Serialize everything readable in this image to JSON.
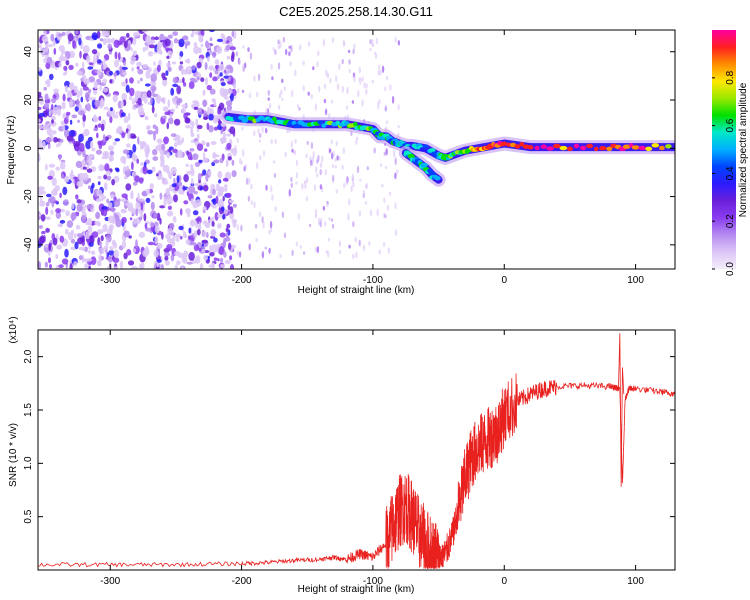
{
  "title": "C2E5.2025.258.14.30.G11",
  "chart_data": [
    {
      "type": "heatmap",
      "name": "spectrogram",
      "xlabel": "Height of straight line (km)",
      "ylabel": "Frequency (Hz)",
      "xlim": [
        -355,
        130
      ],
      "ylim": [
        -50,
        49
      ],
      "xticks": [
        -300,
        -200,
        -100,
        0,
        100
      ],
      "yticks": [
        -40,
        -20,
        0,
        20,
        40
      ],
      "xtick_labels": [
        "-300",
        "-200",
        "-100",
        "0",
        "100"
      ],
      "ytick_labels": [
        "-40",
        "-20",
        "0",
        "20",
        "40"
      ],
      "colorbar": {
        "label": "Normalized spectral amplitude",
        "range": [
          0,
          1
        ],
        "ticks": [
          0.0,
          0.2,
          0.4,
          0.6,
          0.8
        ],
        "tick_labels": [
          "0.0",
          "0.2",
          "0.4",
          "0.6",
          "0.8"
        ],
        "colormap": [
          "#f4eefa",
          "#dcc6f7",
          "#b58cf1",
          "#8a3cf0",
          "#6a1fd9",
          "#2b1cff",
          "#0044ff",
          "#00b0ff",
          "#00e8c8",
          "#00e000",
          "#9be800",
          "#ffe800",
          "#ff8c00",
          "#ff2020",
          "#ff00a0"
        ]
      },
      "ridge": {
        "x": [
          -210,
          -195,
          -180,
          -170,
          -160,
          -145,
          -130,
          -120,
          -110,
          -100,
          -95,
          -90,
          -85,
          -80,
          -75,
          -70,
          -60,
          -50,
          -45,
          -40,
          -30,
          -20,
          -10,
          0,
          20,
          50,
          80,
          100,
          130
        ],
        "y": [
          13,
          12,
          12,
          11,
          10,
          10,
          10,
          10,
          9,
          8,
          5,
          5,
          3,
          2,
          1,
          1,
          0,
          -3,
          -4,
          -3,
          -1,
          0,
          1,
          2,
          0.5,
          0.5,
          0.5,
          0.5,
          0.5
        ],
        "amplitude": [
          0.55,
          0.6,
          0.55,
          0.6,
          0.5,
          0.55,
          0.6,
          0.6,
          0.65,
          0.6,
          0.55,
          0.6,
          0.55,
          0.5,
          0.55,
          0.5,
          0.45,
          0.5,
          0.55,
          0.6,
          0.7,
          0.8,
          0.9,
          0.95,
          0.95,
          0.9,
          0.95,
          0.9,
          0.85
        ]
      },
      "branch": {
        "x": [
          -75,
          -70,
          -65,
          -60,
          -55,
          -50
        ],
        "y": [
          -2,
          -4,
          -6,
          -8,
          -11,
          -13
        ],
        "amplitude": [
          0.5,
          0.55,
          0.5,
          0.55,
          0.5,
          0.45
        ]
      },
      "noise_region": {
        "x_range": [
          -355,
          -205
        ],
        "y_range": [
          -50,
          49
        ]
      },
      "gap_region": {
        "x_range": [
          -160,
          -105
        ]
      }
    },
    {
      "type": "line",
      "name": "snr",
      "xlabel": "Height of straight line (km)",
      "ylabel": "SNR (10 * v/v)",
      "y_multiplier": "(x10⁴)",
      "xlim": [
        -355,
        130
      ],
      "ylim": [
        0,
        2.25
      ],
      "xticks": [
        -300,
        -200,
        -100,
        0,
        100
      ],
      "yticks": [
        0.5,
        1.0,
        1.5,
        2.0
      ],
      "xtick_labels": [
        "-300",
        "-200",
        "-100",
        "0",
        "100"
      ],
      "ytick_labels": [
        "0.5",
        "1.0",
        "1.5",
        "2.0"
      ],
      "color": "#e8201e",
      "series": [
        {
          "x": [
            -355,
            -300,
            -250,
            -200,
            -180,
            -160,
            -140,
            -130,
            -120,
            -110,
            -100,
            -90,
            -85,
            -80,
            -75,
            -70,
            -65,
            -60,
            -55,
            -50,
            -45,
            -40,
            -35,
            -30,
            -25,
            -20,
            -15,
            -10,
            -5,
            0,
            10,
            20,
            30,
            40,
            60,
            80,
            88,
            90,
            92,
            95,
            100,
            120,
            130
          ],
          "y": [
            0.05,
            0.05,
            0.05,
            0.06,
            0.07,
            0.09,
            0.1,
            0.12,
            0.1,
            0.15,
            0.12,
            0.25,
            0.4,
            0.55,
            0.6,
            0.5,
            0.35,
            0.25,
            0.15,
            0.12,
            0.15,
            0.3,
            0.55,
            0.85,
            1.05,
            1.15,
            1.2,
            1.25,
            1.3,
            1.45,
            1.58,
            1.65,
            1.7,
            1.72,
            1.73,
            1.72,
            1.7,
            0.8,
            1.6,
            1.7,
            1.7,
            1.67,
            1.65
          ]
        }
      ]
    }
  ]
}
